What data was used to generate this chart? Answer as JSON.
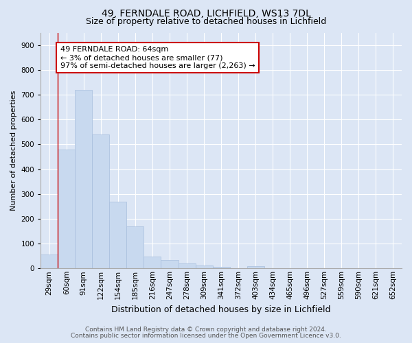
{
  "title_line1": "49, FERNDALE ROAD, LICHFIELD, WS13 7DL",
  "title_line2": "Size of property relative to detached houses in Lichfield",
  "xlabel": "Distribution of detached houses by size in Lichfield",
  "ylabel": "Number of detached properties",
  "categories": [
    "29sqm",
    "60sqm",
    "91sqm",
    "122sqm",
    "154sqm",
    "185sqm",
    "216sqm",
    "247sqm",
    "278sqm",
    "309sqm",
    "341sqm",
    "372sqm",
    "403sqm",
    "434sqm",
    "465sqm",
    "496sqm",
    "527sqm",
    "559sqm",
    "590sqm",
    "621sqm",
    "652sqm"
  ],
  "values": [
    57,
    480,
    718,
    540,
    270,
    170,
    48,
    33,
    20,
    13,
    5,
    0,
    8,
    0,
    0,
    0,
    0,
    0,
    0,
    0,
    0
  ],
  "bar_color": "#c8d9ef",
  "bar_edge_color": "#a8bedd",
  "vline_x": 1.0,
  "vline_color": "#cc0000",
  "annotation_text": "49 FERNDALE ROAD: 64sqm\n← 3% of detached houses are smaller (77)\n97% of semi-detached houses are larger (2,263) →",
  "annotation_box_facecolor": "#ffffff",
  "annotation_box_edge": "#cc0000",
  "ylim": [
    0,
    950
  ],
  "yticks": [
    0,
    100,
    200,
    300,
    400,
    500,
    600,
    700,
    800,
    900
  ],
  "background_color": "#dce6f5",
  "plot_bg_color": "#dce6f5",
  "grid_color": "#ffffff",
  "footer_line1": "Contains HM Land Registry data © Crown copyright and database right 2024.",
  "footer_line2": "Contains public sector information licensed under the Open Government Licence v3.0.",
  "title_fontsize": 10,
  "subtitle_fontsize": 9,
  "xlabel_fontsize": 9,
  "ylabel_fontsize": 8,
  "tick_fontsize": 7.5,
  "annotation_fontsize": 8,
  "footer_fontsize": 6.5
}
